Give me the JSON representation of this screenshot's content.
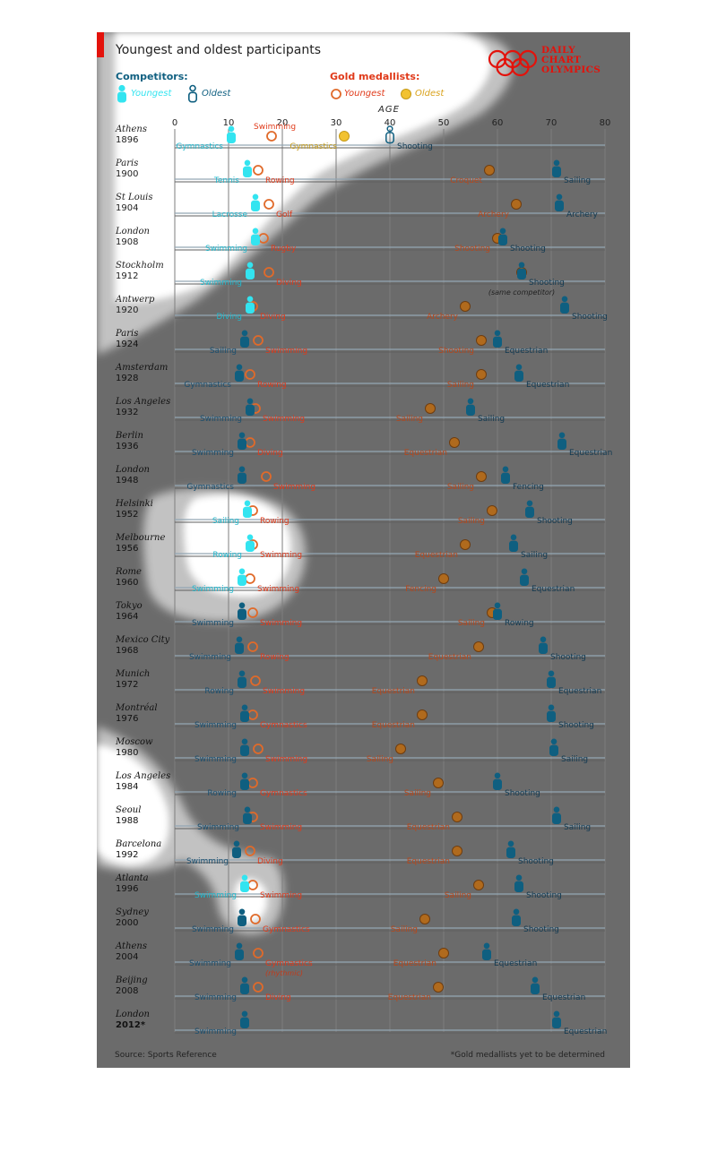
{
  "title": "Youngest and oldest participants",
  "logo": {
    "line1": "DAILY",
    "line2": "CHART",
    "line3": "OLYMPICS"
  },
  "legend": {
    "competitors_label": "Competitors:",
    "medallists_label": "Gold medallists:",
    "youngest": "Youngest",
    "oldest": "Oldest"
  },
  "colors": {
    "competitor_young": "#33e4f0",
    "competitor_old": "#0f5f80",
    "medal_young_stroke": "#e06a2a",
    "medal_old_fill": "#b06a1d",
    "medal_old_light": "#f2c230",
    "label_red": "#e03a1a",
    "background_panel": "#6b6b6b",
    "brand_red": "#e3120b"
  },
  "source": "Source: Sports Reference",
  "footnote": "*Gold medallists yet to be determined",
  "chart_data": {
    "type": "scatter",
    "title": "Youngest and oldest participants",
    "xlabel": "AGE",
    "xlim": [
      0,
      80
    ],
    "xticks": [
      0,
      10,
      20,
      30,
      40,
      50,
      60,
      70,
      80
    ],
    "grid": true,
    "legend_position": "top",
    "rows": [
      {
        "city": "Athens",
        "year": "1896",
        "cy_age": 10.5,
        "cy_sport": "Gymnastics",
        "co_age": 40,
        "co_sport": "Shooting",
        "my_age": 18,
        "my_sport": "Swimming",
        "mo_age": 31.5,
        "mo_sport": "Gymnastics"
      },
      {
        "city": "Paris",
        "year": "1900",
        "cy_age": 13.5,
        "cy_sport": "Tennis",
        "co_age": 71,
        "co_sport": "Sailing",
        "my_age": 15.5,
        "my_sport": "Rowing",
        "mo_age": 58.5,
        "mo_sport": "Croquet"
      },
      {
        "city": "St Louis",
        "year": "1904",
        "cy_age": 15,
        "cy_sport": "Lacrosse",
        "co_age": 71.5,
        "co_sport": "Archery",
        "my_age": 17.5,
        "my_sport": "Golf",
        "mo_age": 63.5,
        "mo_sport": "Archery"
      },
      {
        "city": "London",
        "year": "1908",
        "cy_age": 15,
        "cy_sport": "Swimming",
        "co_age": 61,
        "co_sport": "Shooting",
        "my_age": 16.5,
        "my_sport": "Rugby",
        "mo_age": 60,
        "mo_sport": "Shooting"
      },
      {
        "city": "Stockholm",
        "year": "1912",
        "cy_age": 14,
        "cy_sport": "Swimming",
        "co_age": 64.5,
        "co_sport": "Shooting",
        "co_note": "(same competitor)",
        "my_age": 17.5,
        "my_sport": "Diving",
        "mo_age": 64.5,
        "mo_sport": ""
      },
      {
        "city": "Antwerp",
        "year": "1920",
        "cy_age": 14,
        "cy_sport": "Diving",
        "co_age": 72.5,
        "co_sport": "Shooting",
        "my_age": 14.5,
        "my_sport": "Diving",
        "mo_age": 54,
        "mo_sport": "Archery"
      },
      {
        "city": "Paris",
        "year": "1924",
        "cy_age": 13,
        "cy_sport": "Sailing",
        "co_age": 60,
        "co_sport": "Equestrian",
        "my_age": 15.5,
        "my_sport": "Swimming",
        "mo_age": 57,
        "mo_sport": "Shooting"
      },
      {
        "city": "Amsterdam",
        "year": "1928",
        "cy_age": 12,
        "cy_sport": "Gymnastics",
        "co_age": 64,
        "co_sport": "Equestrian",
        "my_age": 14,
        "my_sport": "Rowing",
        "mo_age": 57,
        "mo_sport": "Sailing"
      },
      {
        "city": "Los Angeles",
        "year": "1932",
        "cy_age": 14,
        "cy_sport": "Swimming",
        "co_age": 55,
        "co_sport": "Sailing",
        "my_age": 15,
        "my_sport": "Swimming",
        "mo_age": 47.5,
        "mo_sport": "Sailing"
      },
      {
        "city": "Berlin",
        "year": "1936",
        "cy_age": 12.5,
        "cy_sport": "Swimming",
        "co_age": 72,
        "co_sport": "Equestrian",
        "my_age": 14,
        "my_sport": "Diving",
        "mo_age": 52,
        "mo_sport": "Equestrian"
      },
      {
        "city": "London",
        "year": "1948",
        "cy_age": 12.5,
        "cy_sport": "Gymnastics",
        "co_age": 61.5,
        "co_sport": "Fencing",
        "my_age": 17,
        "my_sport": "Swimming",
        "mo_age": 57,
        "mo_sport": "Sailing"
      },
      {
        "city": "Helsinki",
        "year": "1952",
        "cy_age": 13.5,
        "cy_sport": "Sailing",
        "co_age": 66,
        "co_sport": "Shooting",
        "my_age": 14.5,
        "my_sport": "Rowing",
        "mo_age": 59,
        "mo_sport": "Sailing"
      },
      {
        "city": "Melbourne",
        "year": "1956",
        "cy_age": 14,
        "cy_sport": "Rowing",
        "co_age": 63,
        "co_sport": "Sailing",
        "my_age": 14.5,
        "my_sport": "Swimming",
        "mo_age": 54,
        "mo_sport": "Equestrian"
      },
      {
        "city": "Rome",
        "year": "1960",
        "cy_age": 12.5,
        "cy_sport": "Swimming",
        "co_age": 65,
        "co_sport": "Equestrian",
        "my_age": 14,
        "my_sport": "Swimming",
        "mo_age": 50,
        "mo_sport": "Fencing"
      },
      {
        "city": "Tokyo",
        "year": "1964",
        "cy_age": 12.5,
        "cy_sport": "Swimming",
        "co_age": 60,
        "co_sport": "Rowing",
        "my_age": 14.5,
        "my_sport": "Swimming",
        "mo_age": 59,
        "mo_sport": "Sailing"
      },
      {
        "city": "Mexico City",
        "year": "1968",
        "cy_age": 12,
        "cy_sport": "Swimming",
        "co_age": 68.5,
        "co_sport": "Shooting",
        "my_age": 14.5,
        "my_sport": "Rowing",
        "mo_age": 56.5,
        "mo_sport": "Equestrian"
      },
      {
        "city": "Munich",
        "year": "1972",
        "cy_age": 12.5,
        "cy_sport": "Rowing",
        "co_age": 70,
        "co_sport": "Equestrian",
        "my_age": 15,
        "my_sport": "Swimming",
        "mo_age": 46,
        "mo_sport": "Equestrian"
      },
      {
        "city": "Montréal",
        "year": "1976",
        "cy_age": 13,
        "cy_sport": "Swimming",
        "co_age": 70,
        "co_sport": "Shooting",
        "my_age": 14.5,
        "my_sport": "Gymnastics",
        "mo_age": 46,
        "mo_sport": "Equestrian"
      },
      {
        "city": "Moscow",
        "year": "1980",
        "cy_age": 13,
        "cy_sport": "Swimming",
        "co_age": 70.5,
        "co_sport": "Sailing",
        "my_age": 15.5,
        "my_sport": "Swimming",
        "mo_age": 42,
        "mo_sport": "Sailing"
      },
      {
        "city": "Los Angeles",
        "year": "1984",
        "cy_age": 13,
        "cy_sport": "Rowing",
        "co_age": 60,
        "co_sport": "Shooting",
        "my_age": 14.5,
        "my_sport": "Gymnastics",
        "mo_age": 49,
        "mo_sport": "Sailing"
      },
      {
        "city": "Seoul",
        "year": "1988",
        "cy_age": 13.5,
        "cy_sport": "Swimming",
        "co_age": 71,
        "co_sport": "Sailing",
        "my_age": 14.5,
        "my_sport": "Swimming",
        "mo_age": 52.5,
        "mo_sport": "Equestrian"
      },
      {
        "city": "Barcelona",
        "year": "1992",
        "cy_age": 11.5,
        "cy_sport": "Swimming",
        "co_age": 62.5,
        "co_sport": "Shooting",
        "my_age": 14,
        "my_sport": "Diving",
        "mo_age": 52.5,
        "mo_sport": "Equestrian"
      },
      {
        "city": "Atlanta",
        "year": "1996",
        "cy_age": 13,
        "cy_sport": "Swimming",
        "co_age": 64,
        "co_sport": "Shooting",
        "my_age": 14.5,
        "my_sport": "Swimming",
        "mo_age": 56.5,
        "mo_sport": "Sailing"
      },
      {
        "city": "Sydney",
        "year": "2000",
        "cy_age": 12.5,
        "cy_sport": "Swimming",
        "co_age": 63.5,
        "co_sport": "Shooting",
        "my_age": 15,
        "my_sport": "Gymnastics",
        "mo_age": 46.5,
        "mo_sport": "Sailing"
      },
      {
        "city": "Athens",
        "year": "2004",
        "cy_age": 12,
        "cy_sport": "Swimming",
        "co_age": 58,
        "co_sport": "Equestrian",
        "my_age": 15.5,
        "my_sport": "Gymnastics",
        "my_note": "(rhythmic)",
        "mo_age": 50,
        "mo_sport": "Equestrian"
      },
      {
        "city": "Beijing",
        "year": "2008",
        "cy_age": 13,
        "cy_sport": "Swimming",
        "co_age": 67,
        "co_sport": "Equestrian",
        "my_age": 15.5,
        "my_sport": "Diving",
        "mo_age": 49,
        "mo_sport": "Equestrian"
      },
      {
        "city": "London",
        "year": "2012*",
        "cy_age": 13,
        "cy_sport": "Swimming",
        "co_age": 71,
        "co_sport": "Equestrian"
      }
    ]
  }
}
